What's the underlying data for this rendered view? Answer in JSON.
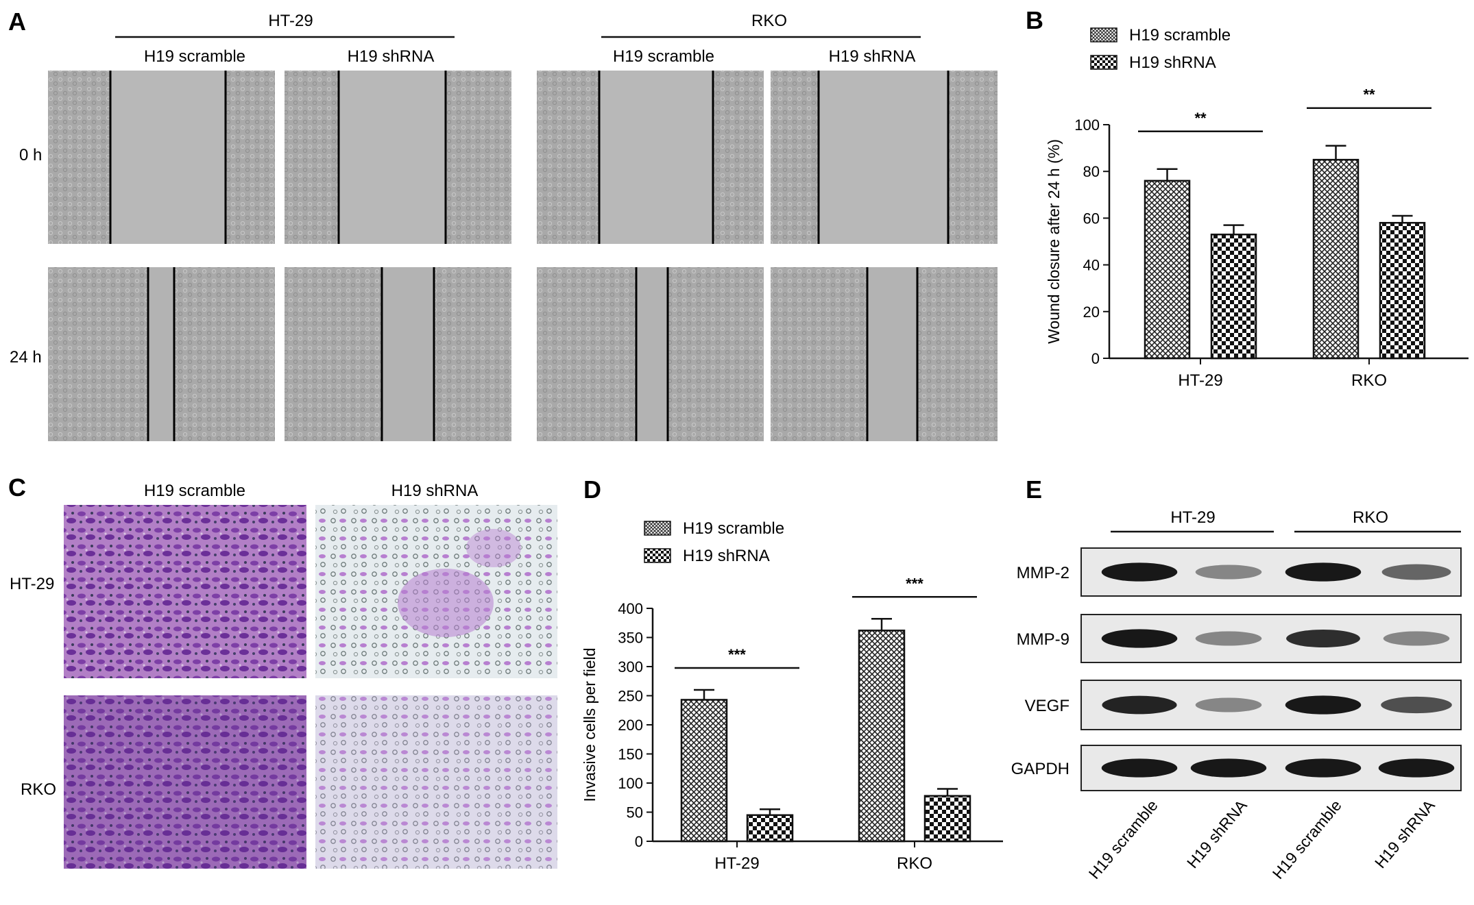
{
  "panels": {
    "A": {
      "letter": "A",
      "cell_lines": [
        "HT-29",
        "RKO"
      ],
      "columns": [
        "H19 scramble",
        "H19 shRNA",
        "H19 scramble",
        "H19 shRNA"
      ],
      "rows": [
        "0 h",
        "24 h"
      ]
    },
    "C": {
      "letter": "C",
      "columns": [
        "H19 scramble",
        "H19 shRNA"
      ],
      "rows": [
        "HT-29",
        "RKO"
      ]
    },
    "E": {
      "letter": "E",
      "cell_lines": [
        "HT-29",
        "RKO"
      ],
      "proteins": [
        "MMP-2",
        "MMP-9",
        "VEGF",
        "GAPDH"
      ],
      "lanes": [
        "H19 scramble",
        "H19 shRNA",
        "H19 scramble",
        "H19 shRNA"
      ],
      "band_intensity": [
        [
          0.95,
          0.45,
          0.95,
          0.6
        ],
        [
          0.95,
          0.45,
          0.85,
          0.45
        ],
        [
          0.9,
          0.45,
          0.95,
          0.7
        ],
        [
          0.95,
          0.95,
          0.95,
          0.95
        ]
      ]
    }
  },
  "chart_data": [
    {
      "panel": "B",
      "type": "bar",
      "categories": [
        "HT-29",
        "RKO"
      ],
      "series": [
        {
          "name": "H19 scramble",
          "values": [
            76,
            85
          ],
          "errors": [
            5,
            6
          ],
          "pattern": "crosshatch"
        },
        {
          "name": "H19 shRNA",
          "values": [
            53,
            58
          ],
          "errors": [
            4,
            3
          ],
          "pattern": "checker"
        }
      ],
      "ylabel": "Wound closure after 24 h (%)",
      "ylim": [
        0,
        100
      ],
      "yticks": [
        0,
        20,
        40,
        60,
        80,
        100
      ],
      "significance": [
        "**",
        "**"
      ],
      "legend": "top-left"
    },
    {
      "panel": "D",
      "type": "bar",
      "categories": [
        "HT-29",
        "RKO"
      ],
      "series": [
        {
          "name": "H19 scramble",
          "values": [
            243,
            362
          ],
          "errors": [
            17,
            20
          ],
          "pattern": "crosshatch"
        },
        {
          "name": "H19 shRNA",
          "values": [
            45,
            78
          ],
          "errors": [
            10,
            12
          ],
          "pattern": "checker"
        }
      ],
      "ylabel": "Invasive cells per field",
      "ylim": [
        0,
        400
      ],
      "yticks": [
        0,
        50,
        100,
        150,
        200,
        250,
        300,
        350,
        400
      ],
      "significance": [
        "***",
        "***"
      ],
      "legend": "top-left"
    }
  ]
}
